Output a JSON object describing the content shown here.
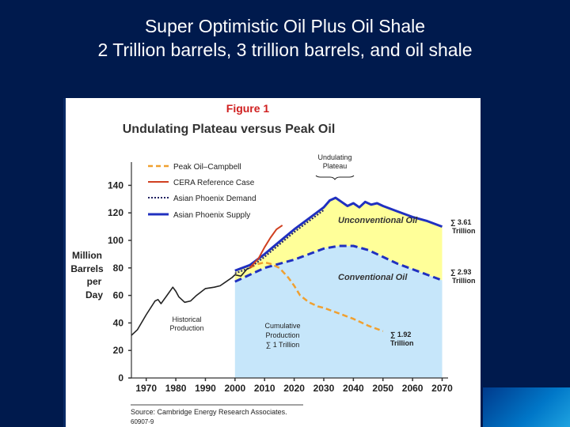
{
  "slide": {
    "title_line1": "Super Optimistic Oil Plus Oil Shale",
    "title_line2": "2 Trillion barrels, 3 trillion barrels, and oil shale"
  },
  "colors": {
    "background": "#001a4d",
    "unconventional_fill": "#ffff99",
    "conventional_fill": "#c6e6fa",
    "peak_oil": "#f0a030",
    "cera": "#d04020",
    "demand": "#202060",
    "supply": "#2030c0"
  },
  "chart_data": {
    "type": "line",
    "figure_label": "Figure 1",
    "title": "Undulating Plateau versus Peak Oil",
    "ylabel_lines": [
      "Million",
      "Barrels",
      "per",
      "Day"
    ],
    "xlim": [
      1965,
      2072
    ],
    "ylim": [
      0,
      150
    ],
    "x_ticks": [
      1970,
      1980,
      1990,
      2000,
      2010,
      2020,
      2030,
      2040,
      2050,
      2060,
      2070
    ],
    "y_ticks": [
      0,
      20,
      40,
      60,
      80,
      100,
      120,
      140
    ],
    "legend": [
      "Peak Oil–Campbell",
      "CERA Reference Case",
      "Asian Phoenix Demand",
      "Asian Phoenix Supply"
    ],
    "series": [
      {
        "name": "Historical Production",
        "x": [
          1965,
          1967,
          1970,
          1973,
          1974,
          1975,
          1977,
          1979,
          1980,
          1981,
          1983,
          1985,
          1987,
          1990,
          1993,
          1995,
          1997,
          1999,
          2000,
          2002,
          2004,
          2005
        ],
        "y": [
          31,
          35,
          46,
          56,
          57,
          54,
          60,
          66,
          63,
          59,
          55,
          56,
          60,
          65,
          66,
          67,
          70,
          73,
          75,
          74,
          79,
          80
        ]
      },
      {
        "name": "Peak Oil–Campbell",
        "x": [
          2005,
          2008,
          2010,
          2012,
          2015,
          2018,
          2020,
          2022,
          2025,
          2028,
          2030,
          2035,
          2040,
          2045,
          2050
        ],
        "y": [
          80,
          83,
          84,
          83,
          80,
          73,
          67,
          60,
          55,
          52,
          51,
          47,
          43,
          38,
          34
        ]
      },
      {
        "name": "CERA Reference Case",
        "x": [
          2005,
          2008,
          2010,
          2012,
          2014,
          2016
        ],
        "y": [
          80,
          87,
          95,
          102,
          108,
          111
        ]
      },
      {
        "name": "Asian Phoenix Demand",
        "x": [
          2000,
          2005,
          2010,
          2015,
          2020,
          2025,
          2030
        ],
        "y": [
          76,
          80,
          88,
          97,
          106,
          114,
          122
        ]
      },
      {
        "name": "Asian Phoenix Supply",
        "x": [
          2000,
          2005,
          2010,
          2015,
          2020,
          2025,
          2030,
          2032,
          2034,
          2036,
          2038,
          2040,
          2042,
          2044,
          2046,
          2048,
          2050,
          2055,
          2060,
          2065,
          2070
        ],
        "y": [
          78,
          82,
          90,
          99,
          108,
          116,
          124,
          129,
          131,
          128,
          125,
          127,
          124,
          128,
          126,
          127,
          125,
          121,
          117,
          114,
          110
        ]
      },
      {
        "name": "Conventional Oil",
        "x": [
          2000,
          2005,
          2010,
          2015,
          2020,
          2025,
          2030,
          2035,
          2040,
          2045,
          2050,
          2055,
          2060,
          2065,
          2070
        ],
        "y": [
          70,
          75,
          80,
          83,
          86,
          90,
          94,
          96,
          96,
          93,
          88,
          83,
          79,
          75,
          71
        ]
      }
    ],
    "annotations": {
      "undulating": "Undulating Plateau",
      "unconventional": "Unconventional Oil",
      "conventional": "Conventional Oil",
      "historical": "Historical Production",
      "cumulative": "Cumulative Production ∑ 1 Trillion",
      "sum_361": "∑ 3.61 Trillion",
      "sum_293": "∑ 2.93 Trillion",
      "sum_192": "∑ 1.92 Trillion"
    },
    "source": "Source: Cambridge Energy Research Associates.",
    "code": "60907-9"
  }
}
